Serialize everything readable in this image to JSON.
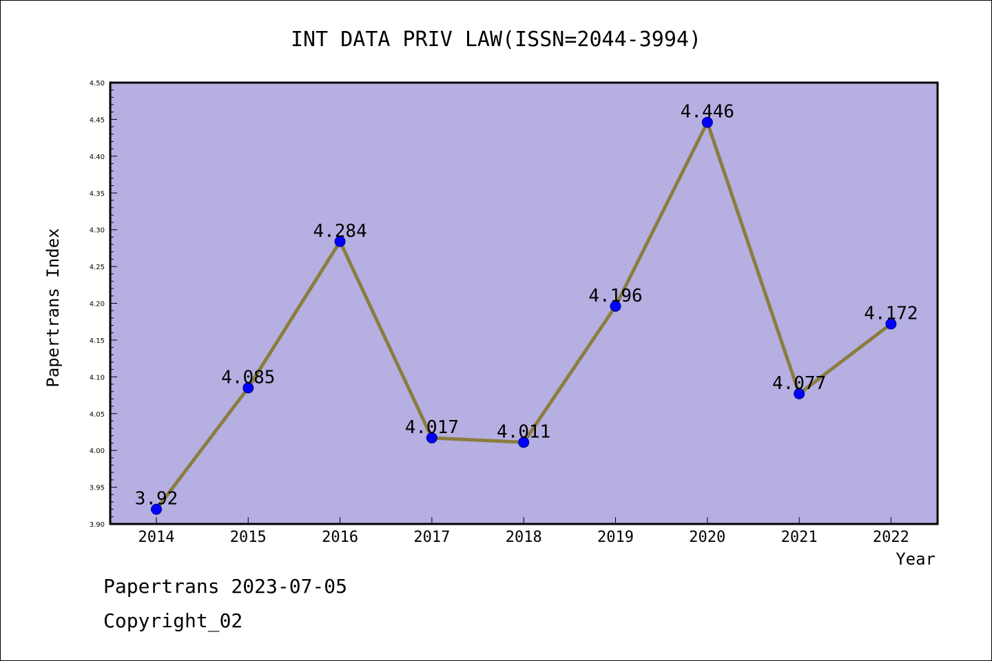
{
  "colors": {
    "plot_background": "#b5afe2",
    "line": "#8b7d3d",
    "marker_fill": "#0000ff",
    "marker_stroke": "#000080",
    "axis": "#000000"
  },
  "footer": {
    "line1": "Papertrans 2023-07-05",
    "line2": "Copyright_02"
  },
  "chart_data": {
    "type": "line",
    "title": "INT DATA PRIV LAW(ISSN=2044-3994)",
    "xlabel": "Year",
    "ylabel": "Papertrans Index",
    "categories": [
      "2014",
      "2015",
      "2016",
      "2017",
      "2018",
      "2019",
      "2020",
      "2021",
      "2022"
    ],
    "series": [
      {
        "values": [
          3.92,
          4.085,
          4.284,
          4.017,
          4.011,
          4.196,
          4.446,
          4.077,
          4.172
        ]
      }
    ],
    "data_labels": [
      "3.92",
      "4.085",
      "4.284",
      "4.017",
      "4.011",
      "4.196",
      "4.446",
      "4.077",
      "4.172"
    ],
    "ylim": [
      3.9,
      4.5
    ],
    "yticks": [
      "3.90",
      "3.95",
      "4.00",
      "4.05",
      "4.10",
      "4.15",
      "4.20",
      "4.25",
      "4.30",
      "4.35",
      "4.40",
      "4.45",
      "4.50"
    ],
    "grid": false,
    "legend": "none"
  }
}
